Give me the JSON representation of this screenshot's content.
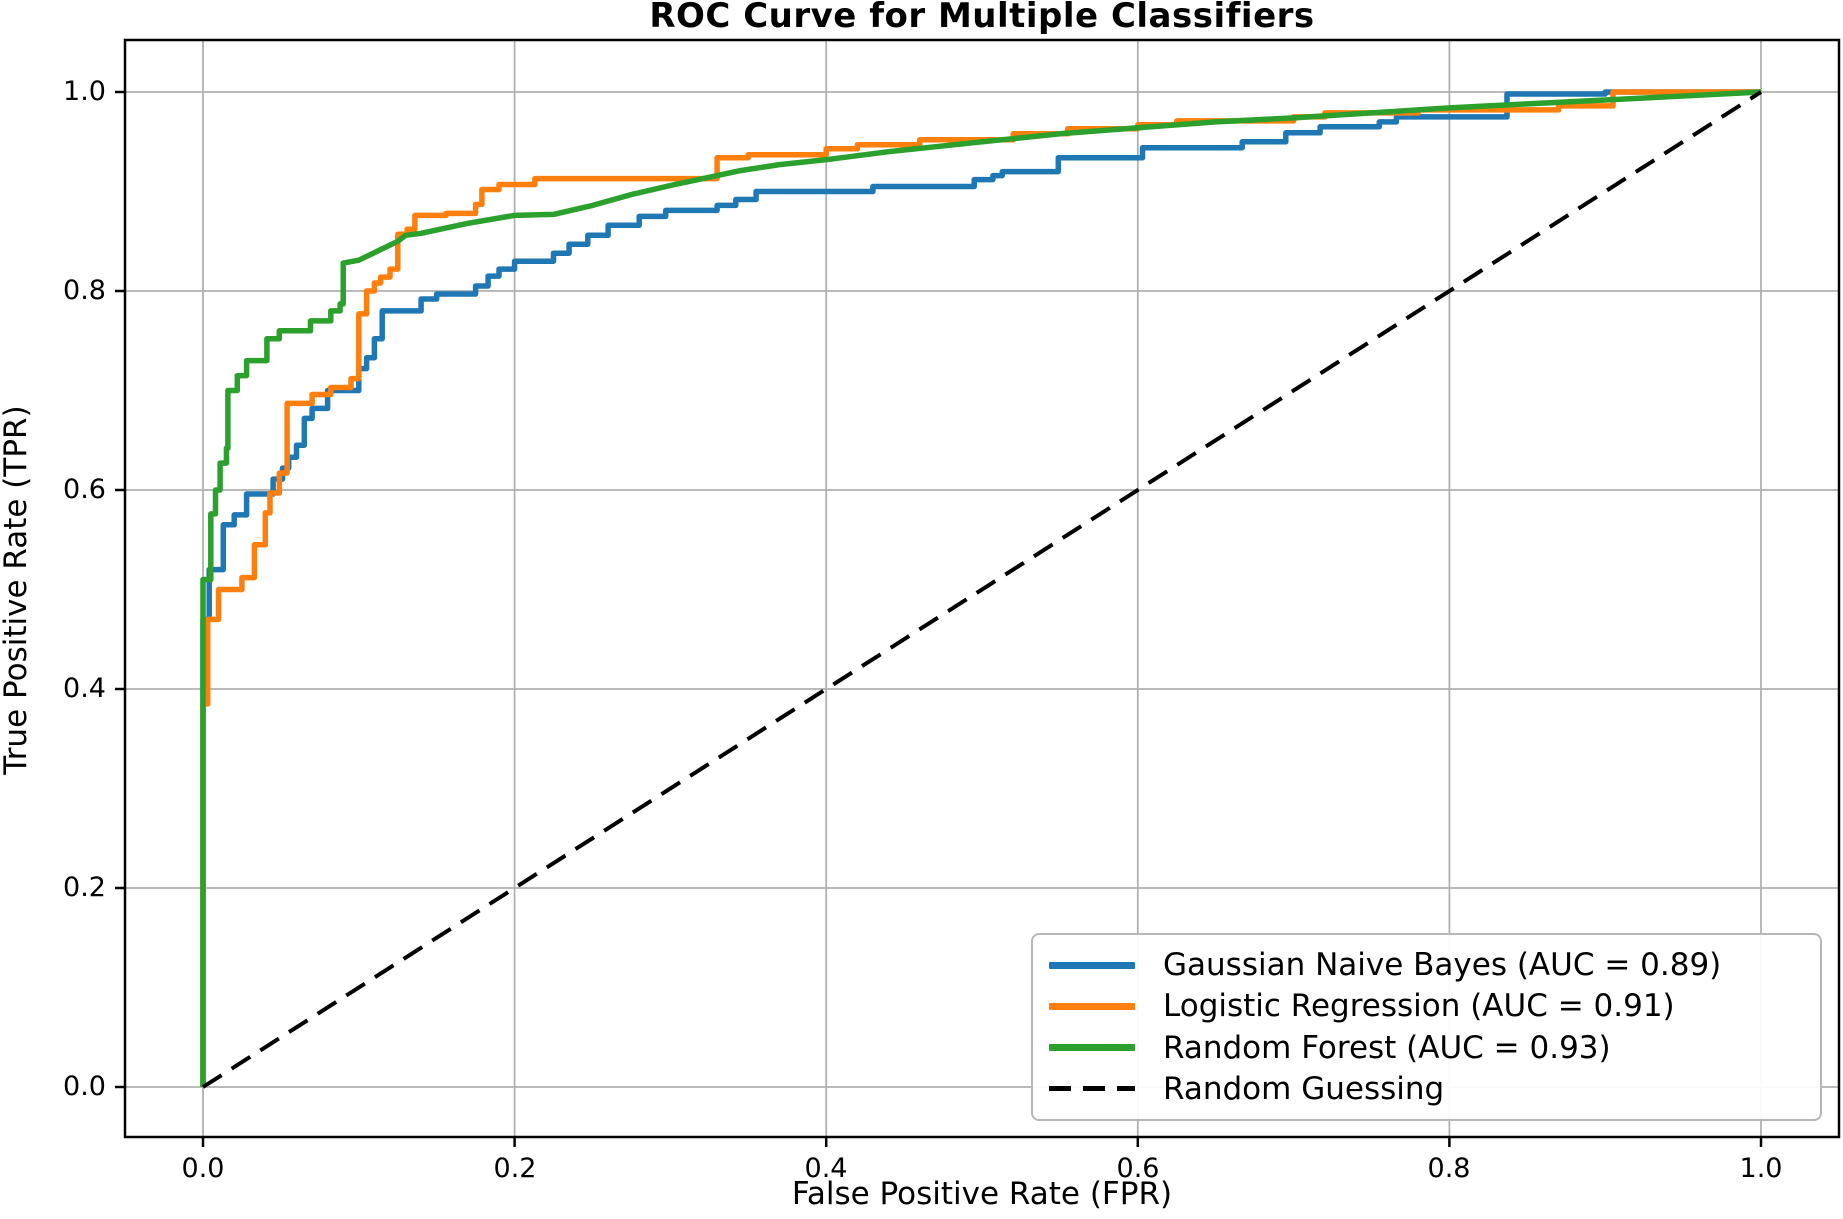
{
  "chart_data": {
    "type": "line",
    "title": "ROC Curve for Multiple Classifiers",
    "xlabel": "False Positive Rate (FPR)",
    "ylabel": "True Positive Rate (TPR)",
    "xlim": [
      -0.05,
      1.05
    ],
    "ylim": [
      -0.05,
      1.05
    ],
    "grid": true,
    "grid_color": "#b0b0b0",
    "legend_position": "lower right",
    "x_ticks": [
      0.0,
      0.2,
      0.4,
      0.6,
      0.8,
      1.0
    ],
    "y_ticks": [
      0.0,
      0.2,
      0.4,
      0.6,
      0.8,
      1.0
    ],
    "x_tick_labels": [
      "0.0",
      "0.2",
      "0.4",
      "0.6",
      "0.8",
      "1.0"
    ],
    "y_tick_labels": [
      "0.0",
      "0.2",
      "0.4",
      "0.6",
      "0.8",
      "1.0"
    ],
    "series": [
      {
        "name": "Gaussian Naive Bayes",
        "auc": 0.89,
        "label": "Gaussian Naive Bayes (AUC = 0.89)",
        "color": "#1f77b4",
        "style": "solid",
        "points": [
          [
            0,
            0
          ],
          [
            0,
            0.47
          ],
          [
            0.004,
            0.47
          ],
          [
            0.004,
            0.52
          ],
          [
            0.013,
            0.52
          ],
          [
            0.013,
            0.565
          ],
          [
            0.02,
            0.565
          ],
          [
            0.02,
            0.575
          ],
          [
            0.028,
            0.575
          ],
          [
            0.028,
            0.596
          ],
          [
            0.045,
            0.596
          ],
          [
            0.045,
            0.611
          ],
          [
            0.051,
            0.611
          ],
          [
            0.051,
            0.622
          ],
          [
            0.055,
            0.622
          ],
          [
            0.055,
            0.633
          ],
          [
            0.06,
            0.633
          ],
          [
            0.06,
            0.645
          ],
          [
            0.065,
            0.645
          ],
          [
            0.065,
            0.672
          ],
          [
            0.07,
            0.672
          ],
          [
            0.07,
            0.682
          ],
          [
            0.08,
            0.682
          ],
          [
            0.08,
            0.7
          ],
          [
            0.1,
            0.7
          ],
          [
            0.1,
            0.722
          ],
          [
            0.105,
            0.722
          ],
          [
            0.105,
            0.733
          ],
          [
            0.11,
            0.733
          ],
          [
            0.11,
            0.752
          ],
          [
            0.115,
            0.752
          ],
          [
            0.115,
            0.78
          ],
          [
            0.14,
            0.78
          ],
          [
            0.14,
            0.792
          ],
          [
            0.15,
            0.792
          ],
          [
            0.15,
            0.797
          ],
          [
            0.175,
            0.797
          ],
          [
            0.175,
            0.805
          ],
          [
            0.183,
            0.805
          ],
          [
            0.183,
            0.815
          ],
          [
            0.19,
            0.815
          ],
          [
            0.19,
            0.822
          ],
          [
            0.2,
            0.822
          ],
          [
            0.2,
            0.83
          ],
          [
            0.225,
            0.83
          ],
          [
            0.225,
            0.838
          ],
          [
            0.235,
            0.838
          ],
          [
            0.235,
            0.847
          ],
          [
            0.247,
            0.847
          ],
          [
            0.247,
            0.856
          ],
          [
            0.26,
            0.856
          ],
          [
            0.26,
            0.866
          ],
          [
            0.28,
            0.866
          ],
          [
            0.28,
            0.875
          ],
          [
            0.297,
            0.875
          ],
          [
            0.297,
            0.881
          ],
          [
            0.33,
            0.881
          ],
          [
            0.33,
            0.886
          ],
          [
            0.342,
            0.886
          ],
          [
            0.342,
            0.892
          ],
          [
            0.355,
            0.892
          ],
          [
            0.355,
            0.9
          ],
          [
            0.43,
            0.9
          ],
          [
            0.43,
            0.905
          ],
          [
            0.495,
            0.905
          ],
          [
            0.495,
            0.912
          ],
          [
            0.507,
            0.912
          ],
          [
            0.507,
            0.916
          ],
          [
            0.513,
            0.916
          ],
          [
            0.513,
            0.92
          ],
          [
            0.549,
            0.92
          ],
          [
            0.549,
            0.934
          ],
          [
            0.603,
            0.934
          ],
          [
            0.603,
            0.944
          ],
          [
            0.667,
            0.944
          ],
          [
            0.667,
            0.95
          ],
          [
            0.695,
            0.95
          ],
          [
            0.695,
            0.959
          ],
          [
            0.717,
            0.959
          ],
          [
            0.717,
            0.965
          ],
          [
            0.755,
            0.965
          ],
          [
            0.755,
            0.97
          ],
          [
            0.766,
            0.97
          ],
          [
            0.766,
            0.975
          ],
          [
            0.837,
            0.975
          ],
          [
            0.837,
            0.998
          ],
          [
            0.9,
            0.998
          ],
          [
            0.9,
            1.0
          ],
          [
            1,
            1
          ]
        ]
      },
      {
        "name": "Logistic Regression",
        "auc": 0.91,
        "label": "Logistic Regression (AUC = 0.91)",
        "color": "#ff7f0e",
        "style": "solid",
        "points": [
          [
            0,
            0
          ],
          [
            0,
            0.385
          ],
          [
            0.003,
            0.385
          ],
          [
            0.003,
            0.47
          ],
          [
            0.01,
            0.47
          ],
          [
            0.01,
            0.5
          ],
          [
            0.025,
            0.5
          ],
          [
            0.025,
            0.512
          ],
          [
            0.033,
            0.512
          ],
          [
            0.033,
            0.545
          ],
          [
            0.04,
            0.545
          ],
          [
            0.04,
            0.577
          ],
          [
            0.043,
            0.577
          ],
          [
            0.043,
            0.597
          ],
          [
            0.049,
            0.597
          ],
          [
            0.049,
            0.617
          ],
          [
            0.054,
            0.617
          ],
          [
            0.054,
            0.687
          ],
          [
            0.07,
            0.687
          ],
          [
            0.07,
            0.696
          ],
          [
            0.082,
            0.696
          ],
          [
            0.082,
            0.703
          ],
          [
            0.095,
            0.703
          ],
          [
            0.095,
            0.712
          ],
          [
            0.1,
            0.712
          ],
          [
            0.1,
            0.777
          ],
          [
            0.105,
            0.777
          ],
          [
            0.105,
            0.8
          ],
          [
            0.11,
            0.8
          ],
          [
            0.11,
            0.808
          ],
          [
            0.114,
            0.808
          ],
          [
            0.114,
            0.814
          ],
          [
            0.12,
            0.814
          ],
          [
            0.12,
            0.822
          ],
          [
            0.125,
            0.822
          ],
          [
            0.125,
            0.857
          ],
          [
            0.131,
            0.857
          ],
          [
            0.131,
            0.862
          ],
          [
            0.136,
            0.862
          ],
          [
            0.136,
            0.876
          ],
          [
            0.156,
            0.876
          ],
          [
            0.156,
            0.878
          ],
          [
            0.175,
            0.878
          ],
          [
            0.175,
            0.887
          ],
          [
            0.179,
            0.887
          ],
          [
            0.179,
            0.902
          ],
          [
            0.19,
            0.902
          ],
          [
            0.19,
            0.907
          ],
          [
            0.213,
            0.907
          ],
          [
            0.213,
            0.913
          ],
          [
            0.33,
            0.913
          ],
          [
            0.33,
            0.934
          ],
          [
            0.35,
            0.934
          ],
          [
            0.35,
            0.937
          ],
          [
            0.4,
            0.937
          ],
          [
            0.4,
            0.943
          ],
          [
            0.42,
            0.943
          ],
          [
            0.42,
            0.947
          ],
          [
            0.46,
            0.947
          ],
          [
            0.46,
            0.952
          ],
          [
            0.52,
            0.952
          ],
          [
            0.52,
            0.958
          ],
          [
            0.555,
            0.958
          ],
          [
            0.555,
            0.963
          ],
          [
            0.6,
            0.963
          ],
          [
            0.6,
            0.967
          ],
          [
            0.625,
            0.967
          ],
          [
            0.625,
            0.971
          ],
          [
            0.7,
            0.971
          ],
          [
            0.7,
            0.975
          ],
          [
            0.72,
            0.975
          ],
          [
            0.72,
            0.979
          ],
          [
            0.78,
            0.979
          ],
          [
            0.78,
            0.982
          ],
          [
            0.87,
            0.982
          ],
          [
            0.87,
            0.986
          ],
          [
            0.905,
            0.986
          ],
          [
            0.905,
            1.0
          ],
          [
            1,
            1
          ]
        ]
      },
      {
        "name": "Random Forest",
        "auc": 0.93,
        "label": "Random Forest (AUC = 0.93)",
        "color": "#2ca02c",
        "style": "solid",
        "points": [
          [
            0,
            0
          ],
          [
            0,
            0.51
          ],
          [
            0.005,
            0.51
          ],
          [
            0.005,
            0.576
          ],
          [
            0.008,
            0.576
          ],
          [
            0.008,
            0.6
          ],
          [
            0.011,
            0.6
          ],
          [
            0.011,
            0.627
          ],
          [
            0.015,
            0.627
          ],
          [
            0.015,
            0.642
          ],
          [
            0.016,
            0.642
          ],
          [
            0.016,
            0.7
          ],
          [
            0.022,
            0.7
          ],
          [
            0.022,
            0.715
          ],
          [
            0.028,
            0.715
          ],
          [
            0.028,
            0.73
          ],
          [
            0.041,
            0.73
          ],
          [
            0.041,
            0.752
          ],
          [
            0.049,
            0.752
          ],
          [
            0.049,
            0.76
          ],
          [
            0.069,
            0.76
          ],
          [
            0.069,
            0.77
          ],
          [
            0.082,
            0.77
          ],
          [
            0.082,
            0.78
          ],
          [
            0.088,
            0.78
          ],
          [
            0.088,
            0.787
          ],
          [
            0.09,
            0.787
          ],
          [
            0.09,
            0.828
          ],
          [
            0.1,
            0.831
          ],
          [
            0.125,
            0.85
          ],
          [
            0.13,
            0.856
          ],
          [
            0.14,
            0.858
          ],
          [
            0.155,
            0.863
          ],
          [
            0.17,
            0.868
          ],
          [
            0.2,
            0.876
          ],
          [
            0.225,
            0.877
          ],
          [
            0.25,
            0.886
          ],
          [
            0.275,
            0.897
          ],
          [
            0.3,
            0.906
          ],
          [
            0.345,
            0.921
          ],
          [
            0.37,
            0.927
          ],
          [
            0.4,
            0.932
          ],
          [
            0.44,
            0.94
          ],
          [
            0.5,
            0.95
          ],
          [
            0.55,
            0.958
          ],
          [
            0.6,
            0.964
          ],
          [
            0.65,
            0.97
          ],
          [
            0.7,
            0.974
          ],
          [
            0.75,
            0.979
          ],
          [
            0.8,
            0.984
          ],
          [
            0.85,
            0.988
          ],
          [
            0.9,
            0.992
          ],
          [
            0.95,
            0.996
          ],
          [
            1,
            1
          ]
        ]
      },
      {
        "name": "Random Guessing",
        "label": "Random Guessing",
        "color": "#000000",
        "style": "dashed",
        "points": [
          [
            0,
            0
          ],
          [
            1,
            1
          ]
        ]
      }
    ]
  }
}
